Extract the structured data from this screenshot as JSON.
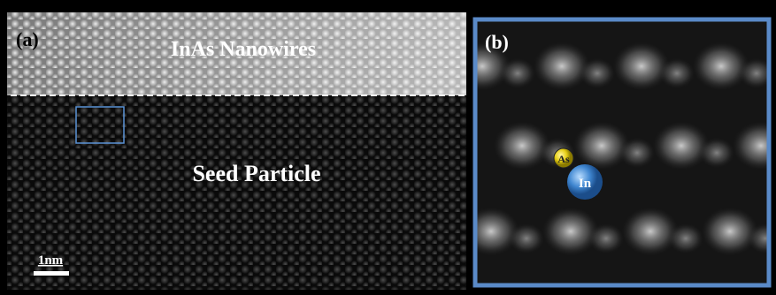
{
  "panel_a": {
    "label": "(a)",
    "top_region_label": "InAs Nanowires",
    "bottom_region_label": "Seed Particle",
    "scale_bar_label": "1nm"
  },
  "panel_b": {
    "label": "(b)",
    "atoms": [
      {
        "label": "As"
      },
      {
        "label": "In"
      }
    ]
  }
}
